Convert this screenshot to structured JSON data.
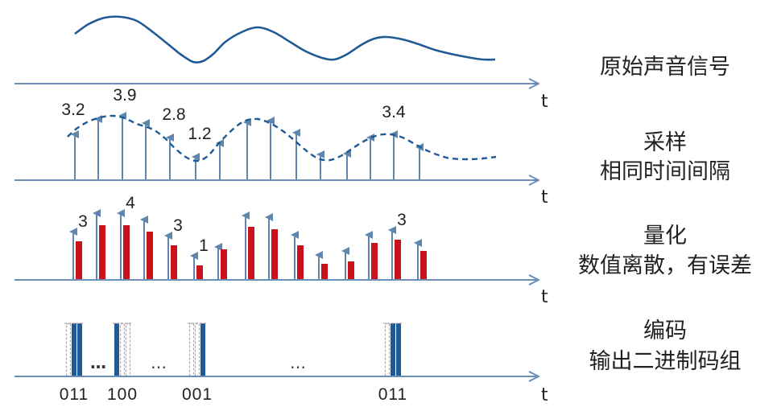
{
  "panels": [
    {
      "id": "original",
      "axis_label": "t",
      "caption": [
        "原始声音信号"
      ],
      "wave": [
        [
          93,
          42
        ],
        [
          110,
          30
        ],
        [
          130,
          22
        ],
        [
          150,
          21
        ],
        [
          170,
          26
        ],
        [
          190,
          40
        ],
        [
          210,
          56
        ],
        [
          225,
          68
        ],
        [
          240,
          77
        ],
        [
          252,
          76
        ],
        [
          265,
          67
        ],
        [
          280,
          52
        ],
        [
          300,
          40
        ],
        [
          320,
          34
        ],
        [
          340,
          40
        ],
        [
          360,
          52
        ],
        [
          380,
          64
        ],
        [
          400,
          72
        ],
        [
          415,
          74
        ],
        [
          430,
          68
        ],
        [
          450,
          55
        ],
        [
          465,
          48
        ],
        [
          480,
          46
        ],
        [
          500,
          49
        ],
        [
          520,
          55
        ],
        [
          540,
          62
        ],
        [
          560,
          67
        ],
        [
          580,
          71
        ],
        [
          600,
          74
        ],
        [
          615,
          74
        ]
      ]
    },
    {
      "id": "sampling",
      "axis_label": "t",
      "caption": [
        "采样",
        "相同时间间隔"
      ],
      "wave_dashed": [
        [
          84,
          170
        ],
        [
          95,
          160
        ],
        [
          110,
          151
        ],
        [
          125,
          146
        ],
        [
          140,
          144
        ],
        [
          155,
          147
        ],
        [
          170,
          154
        ],
        [
          190,
          161
        ],
        [
          205,
          172
        ],
        [
          218,
          185
        ],
        [
          232,
          196
        ],
        [
          245,
          200
        ],
        [
          258,
          194
        ],
        [
          272,
          178
        ],
        [
          290,
          160
        ],
        [
          305,
          150
        ],
        [
          320,
          148
        ],
        [
          335,
          153
        ],
        [
          350,
          162
        ],
        [
          365,
          174
        ],
        [
          380,
          187
        ],
        [
          395,
          197
        ],
        [
          410,
          199
        ],
        [
          425,
          193
        ],
        [
          440,
          183
        ],
        [
          455,
          174
        ],
        [
          470,
          168
        ],
        [
          485,
          167
        ],
        [
          500,
          171
        ],
        [
          515,
          179
        ],
        [
          530,
          187
        ],
        [
          545,
          193
        ],
        [
          560,
          197
        ],
        [
          580,
          198
        ],
        [
          600,
          197
        ],
        [
          616,
          195
        ]
      ],
      "samples_x": [
        93,
        122,
        152,
        181,
        211,
        243,
        273,
        307,
        336,
        368,
        398,
        431,
        460,
        489,
        521
      ],
      "samples_top": [
        167,
        148,
        144,
        153,
        171,
        195,
        178,
        152,
        150,
        165,
        192,
        191,
        171,
        167,
        183
      ],
      "labels": [
        {
          "text": "3.2",
          "sample": 0
        },
        {
          "text": "3.9",
          "sample": 2
        },
        {
          "text": "2.8",
          "sample": 4
        },
        {
          "text": "1.2",
          "sample": 5
        },
        {
          "text": "3.4",
          "sample": 13
        }
      ]
    },
    {
      "id": "quantization",
      "axis_label": "t",
      "caption": [
        "量化",
        "数值离散，有误差"
      ],
      "samples_x": [
        93,
        122,
        152,
        181,
        211,
        243,
        273,
        307,
        336,
        368,
        398,
        431,
        460,
        489,
        521
      ],
      "samples_top": [
        288,
        265,
        265,
        273,
        293,
        318,
        307,
        268,
        270,
        292,
        317,
        312,
        292,
        286,
        302
      ],
      "bars_top": [
        300,
        280,
        280,
        288,
        305,
        330,
        310,
        282,
        285,
        305,
        328,
        325,
        302,
        298,
        312
      ],
      "labels": [
        {
          "text": "3",
          "sample": 0
        },
        {
          "text": "4",
          "sample": 2
        },
        {
          "text": "3",
          "sample": 4
        },
        {
          "text": "1",
          "sample": 5
        },
        {
          "text": "3",
          "sample": 13
        }
      ]
    },
    {
      "id": "encoding",
      "axis_label": "t",
      "caption": [
        "编码",
        "输出二进制码组"
      ],
      "codes": [
        {
          "text": "011",
          "x": 92,
          "bits": "011"
        },
        {
          "text": "100",
          "x": 152,
          "bits": "100"
        },
        {
          "text": "001",
          "x": 245,
          "bits": "001"
        },
        {
          "text": "011",
          "x": 488,
          "bits": "011"
        }
      ],
      "ellipses": [
        {
          "text": "…",
          "x": 122,
          "bold": true
        },
        {
          "text": "…",
          "x": 197,
          "bold": false
        },
        {
          "text": "…",
          "x": 370,
          "bold": false
        }
      ]
    }
  ],
  "colors": {
    "axis": "#6a8fb8",
    "wave": "#1f5a94",
    "sample": "#5f86ad",
    "bar": "#c8131c",
    "code_fill": "#1f5a94",
    "code_empty": "#a8a8a8"
  }
}
